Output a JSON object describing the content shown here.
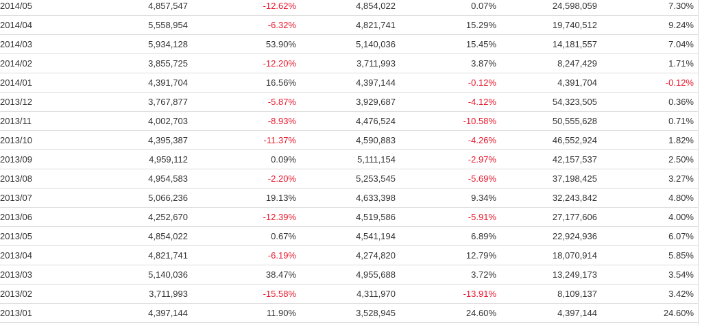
{
  "table": {
    "rows": [
      {
        "month": "2014/05",
        "v1": "4,857,547",
        "c1": "-12.62%",
        "v2": "4,854,022",
        "c2": "0.07%",
        "v3": "24,598,059",
        "c3": "7.30%"
      },
      {
        "month": "2014/04",
        "v1": "5,558,954",
        "c1": "-6.32%",
        "v2": "4,821,741",
        "c2": "15.29%",
        "v3": "19,740,512",
        "c3": "9.24%"
      },
      {
        "month": "2014/03",
        "v1": "5,934,128",
        "c1": "53.90%",
        "v2": "5,140,036",
        "c2": "15.45%",
        "v3": "14,181,557",
        "c3": "7.04%"
      },
      {
        "month": "2014/02",
        "v1": "3,855,725",
        "c1": "-12.20%",
        "v2": "3,711,993",
        "c2": "3.87%",
        "v3": "8,247,429",
        "c3": "1.71%"
      },
      {
        "month": "2014/01",
        "v1": "4,391,704",
        "c1": "16.56%",
        "v2": "4,397,144",
        "c2": "-0.12%",
        "v3": "4,391,704",
        "c3": "-0.12%"
      },
      {
        "month": "2013/12",
        "v1": "3,767,877",
        "c1": "-5.87%",
        "v2": "3,929,687",
        "c2": "-4.12%",
        "v3": "54,323,505",
        "c3": "0.36%"
      },
      {
        "month": "2013/11",
        "v1": "4,002,703",
        "c1": "-8.93%",
        "v2": "4,476,524",
        "c2": "-10.58%",
        "v3": "50,555,628",
        "c3": "0.71%"
      },
      {
        "month": "2013/10",
        "v1": "4,395,387",
        "c1": "-11.37%",
        "v2": "4,590,883",
        "c2": "-4.26%",
        "v3": "46,552,924",
        "c3": "1.82%"
      },
      {
        "month": "2013/09",
        "v1": "4,959,112",
        "c1": "0.09%",
        "v2": "5,111,154",
        "c2": "-2.97%",
        "v3": "42,157,537",
        "c3": "2.50%"
      },
      {
        "month": "2013/08",
        "v1": "4,954,583",
        "c1": "-2.20%",
        "v2": "5,253,545",
        "c2": "-5.69%",
        "v3": "37,198,425",
        "c3": "3.27%"
      },
      {
        "month": "2013/07",
        "v1": "5,066,236",
        "c1": "19.13%",
        "v2": "4,633,398",
        "c2": "9.34%",
        "v3": "32,243,842",
        "c3": "4.80%"
      },
      {
        "month": "2013/06",
        "v1": "4,252,670",
        "c1": "-12.39%",
        "v2": "4,519,586",
        "c2": "-5.91%",
        "v3": "27,177,606",
        "c3": "4.00%"
      },
      {
        "month": "2013/05",
        "v1": "4,854,022",
        "c1": "0.67%",
        "v2": "4,541,194",
        "c2": "6.89%",
        "v3": "22,924,936",
        "c3": "6.07%"
      },
      {
        "month": "2013/04",
        "v1": "4,821,741",
        "c1": "-6.19%",
        "v2": "4,274,820",
        "c2": "12.79%",
        "v3": "18,070,914",
        "c3": "5.85%"
      },
      {
        "month": "2013/03",
        "v1": "5,140,036",
        "c1": "38.47%",
        "v2": "4,955,688",
        "c2": "3.72%",
        "v3": "13,249,173",
        "c3": "3.54%"
      },
      {
        "month": "2013/02",
        "v1": "3,711,993",
        "c1": "-15.58%",
        "v2": "4,311,970",
        "c2": "-13.91%",
        "v3": "8,109,137",
        "c3": "3.42%"
      },
      {
        "month": "2013/01",
        "v1": "4,397,144",
        "c1": "11.90%",
        "v2": "3,528,945",
        "c2": "24.60%",
        "v3": "4,397,144",
        "c3": "24.60%"
      }
    ]
  },
  "colors": {
    "negative": "#e8182c",
    "text": "#333333",
    "row_border": "#dcdcdc"
  }
}
